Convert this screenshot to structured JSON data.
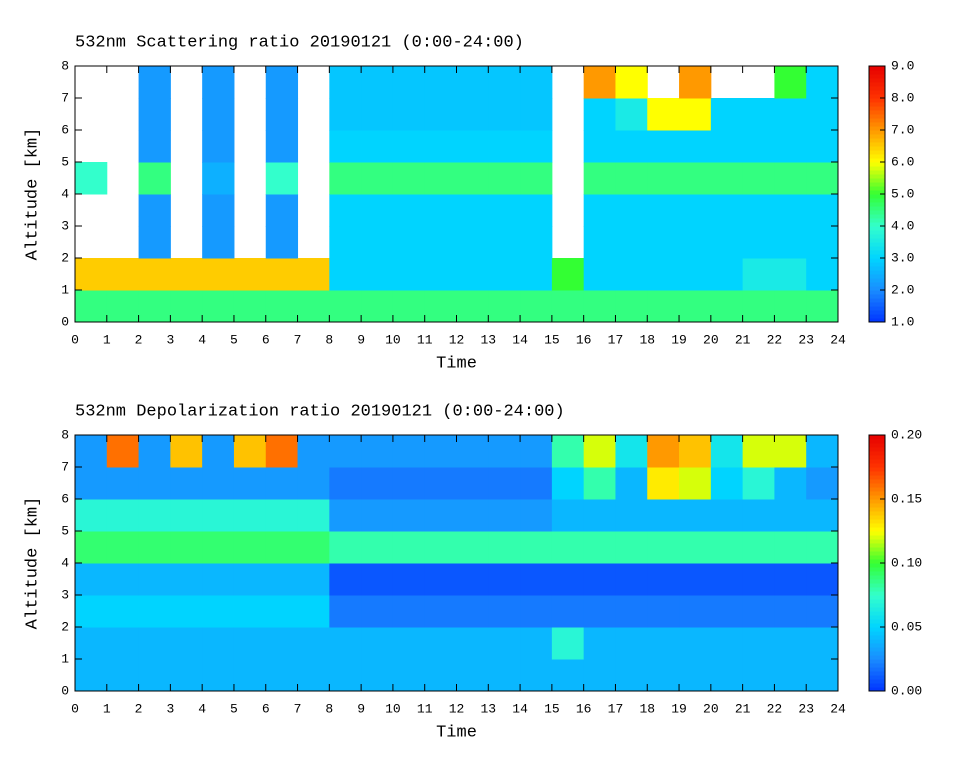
{
  "chart_data": [
    {
      "type": "heatmap",
      "title": "532nm Scattering ratio  20190121 (0:00-24:00)",
      "xlabel": "Time",
      "ylabel": "Altitude [km]",
      "xlim": [
        0,
        24
      ],
      "xticks": [
        0,
        1,
        2,
        3,
        4,
        5,
        6,
        7,
        8,
        9,
        10,
        11,
        12,
        13,
        14,
        15,
        16,
        17,
        18,
        19,
        20,
        21,
        22,
        23,
        24
      ],
      "ylim": [
        0,
        8
      ],
      "yticks": [
        0,
        1,
        2,
        3,
        4,
        5,
        6,
        7,
        8
      ],
      "zlim": [
        1,
        9
      ],
      "zticks": [
        {
          "value": 1,
          "label": "1.0"
        },
        {
          "value": 2,
          "label": "2.0"
        },
        {
          "value": 3,
          "label": "3.0"
        },
        {
          "value": 4,
          "label": "4.0"
        },
        {
          "value": 5,
          "label": "5.0"
        },
        {
          "value": 6,
          "label": "6.0"
        },
        {
          "value": 7,
          "label": "7.0"
        },
        {
          "value": 8,
          "label": "8.0"
        },
        {
          "value": 9,
          "label": "9.0"
        }
      ],
      "colormap": [
        "#0033ff",
        "#1a8cff",
        "#00d4ff",
        "#33ffcc",
        "#33ff33",
        "#ffff00",
        "#ff9900",
        "#ff3300",
        "#e60000"
      ],
      "z": [
        [
          4.5,
          4.5,
          4.5,
          4.5,
          4.5,
          4.5,
          4.5,
          4.5,
          4.5,
          4.5,
          4.5,
          4.5,
          4.5,
          4.5,
          4.5,
          4.5,
          4.5,
          4.5,
          4.5,
          4.5,
          4.5,
          4.5,
          4.5,
          4.5
        ],
        [
          6.5,
          6.5,
          6.5,
          6.5,
          6.5,
          6.5,
          6.5,
          6.5,
          3,
          3,
          3,
          3,
          3,
          3,
          3,
          5,
          3,
          3,
          3,
          3,
          3,
          3.5,
          3.5,
          3
        ],
        [
          null,
          null,
          2.2,
          null,
          2.2,
          null,
          2.2,
          null,
          3,
          3,
          3,
          3,
          3,
          3,
          3,
          null,
          3,
          3,
          3,
          3,
          3,
          3,
          3,
          3
        ],
        [
          null,
          null,
          2.2,
          null,
          2.2,
          null,
          2.2,
          null,
          3,
          3,
          3,
          3,
          3,
          3,
          3,
          null,
          3,
          3,
          3,
          3,
          3,
          3,
          3,
          3
        ],
        [
          4,
          null,
          4.5,
          null,
          2.5,
          null,
          4,
          null,
          4.5,
          4.5,
          4.5,
          4.5,
          4.5,
          4.5,
          4.5,
          null,
          4.5,
          4.5,
          4.5,
          4.5,
          4.5,
          4.5,
          4.5,
          4.5
        ],
        [
          null,
          null,
          2.2,
          null,
          2.2,
          null,
          2.2,
          null,
          3,
          3,
          3,
          3,
          3,
          3,
          3,
          null,
          3,
          3,
          3,
          3,
          3,
          3,
          3,
          3
        ],
        [
          null,
          null,
          2.2,
          null,
          2.2,
          null,
          2.2,
          null,
          2.8,
          2.8,
          2.8,
          2.8,
          2.8,
          2.8,
          2.8,
          null,
          3,
          3.5,
          6,
          6,
          3,
          3,
          3,
          3
        ],
        [
          null,
          null,
          2.2,
          null,
          2.2,
          null,
          2.2,
          null,
          2.8,
          2.8,
          2.8,
          2.8,
          2.8,
          2.8,
          2.8,
          null,
          7,
          6,
          null,
          7,
          null,
          null,
          5,
          3
        ]
      ]
    },
    {
      "type": "heatmap",
      "title": "532nm Depolarization ratio  20190121 (0:00-24:00)",
      "xlabel": "Time",
      "ylabel": "Altitude [km]",
      "xlim": [
        0,
        24
      ],
      "xticks": [
        0,
        1,
        2,
        3,
        4,
        5,
        6,
        7,
        8,
        9,
        10,
        11,
        12,
        13,
        14,
        15,
        16,
        17,
        18,
        19,
        20,
        21,
        22,
        23,
        24
      ],
      "ylim": [
        0,
        8
      ],
      "yticks": [
        0,
        1,
        2,
        3,
        4,
        5,
        6,
        7,
        8
      ],
      "zlim": [
        0,
        0.2
      ],
      "zticks": [
        {
          "value": 0,
          "label": "0.00"
        },
        0.05,
        {
          "value": 0.1,
          "label": "0.10"
        },
        {
          "value": 0.15,
          "label": "0.15"
        },
        {
          "value": 0.2,
          "label": "0.20"
        }
      ],
      "colormap": [
        "#0033ff",
        "#1a8cff",
        "#00d4ff",
        "#33ffcc",
        "#33ff33",
        "#ffff00",
        "#ff9900",
        "#ff3300",
        "#e60000"
      ],
      "z": [
        [
          0.04,
          0.04,
          0.04,
          0.04,
          0.04,
          0.04,
          0.04,
          0.04,
          0.04,
          0.04,
          0.04,
          0.04,
          0.04,
          0.04,
          0.04,
          0.04,
          0.04,
          0.04,
          0.04,
          0.04,
          0.04,
          0.04,
          0.04,
          0.04
        ],
        [
          0.04,
          0.04,
          0.04,
          0.04,
          0.04,
          0.04,
          0.04,
          0.04,
          0.04,
          0.04,
          0.04,
          0.04,
          0.04,
          0.04,
          0.04,
          0.07,
          0.04,
          0.04,
          0.04,
          0.04,
          0.04,
          0.04,
          0.04,
          0.04
        ],
        [
          0.05,
          0.05,
          0.05,
          0.05,
          0.05,
          0.05,
          0.05,
          0.05,
          0.02,
          0.02,
          0.02,
          0.02,
          0.02,
          0.02,
          0.02,
          0.02,
          0.02,
          0.02,
          0.02,
          0.02,
          0.02,
          0.02,
          0.02,
          0.02
        ],
        [
          0.04,
          0.04,
          0.04,
          0.04,
          0.04,
          0.04,
          0.04,
          0.04,
          0.01,
          0.01,
          0.01,
          0.01,
          0.01,
          0.01,
          0.01,
          0.01,
          0.01,
          0.01,
          0.01,
          0.01,
          0.01,
          0.01,
          0.01,
          0.01
        ],
        [
          0.09,
          0.09,
          0.09,
          0.09,
          0.09,
          0.09,
          0.09,
          0.09,
          0.08,
          0.08,
          0.08,
          0.08,
          0.08,
          0.08,
          0.08,
          0.08,
          0.08,
          0.08,
          0.08,
          0.08,
          0.08,
          0.08,
          0.08,
          0.08
        ],
        [
          0.07,
          0.07,
          0.07,
          0.07,
          0.07,
          0.07,
          0.07,
          0.07,
          0.03,
          0.03,
          0.03,
          0.03,
          0.03,
          0.03,
          0.03,
          0.04,
          0.04,
          0.04,
          0.04,
          0.04,
          0.04,
          0.04,
          0.04,
          0.04
        ],
        [
          0.03,
          0.03,
          0.03,
          0.03,
          0.03,
          0.03,
          0.03,
          0.03,
          0.02,
          0.02,
          0.02,
          0.02,
          0.02,
          0.02,
          0.02,
          0.05,
          0.08,
          0.04,
          0.13,
          0.12,
          0.05,
          0.07,
          0.04,
          0.03
        ],
        [
          0.03,
          0.16,
          0.03,
          0.14,
          0.03,
          0.14,
          0.16,
          0.03,
          0.03,
          0.03,
          0.03,
          0.03,
          0.03,
          0.03,
          0.03,
          0.08,
          0.12,
          0.06,
          0.15,
          0.14,
          0.06,
          0.12,
          0.12,
          0.04
        ]
      ]
    }
  ]
}
